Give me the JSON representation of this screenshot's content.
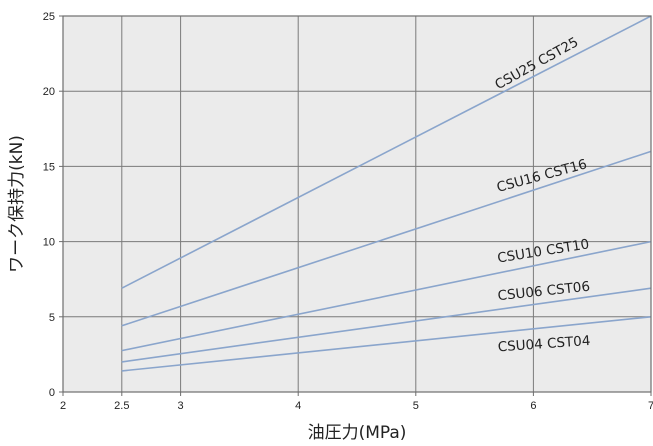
{
  "chart_data": {
    "type": "line",
    "title": "",
    "xlabel": "油圧力(MPa)",
    "ylabel": "ワーク保持力(kN)",
    "xlim": [
      2,
      7
    ],
    "ylim": [
      0,
      25
    ],
    "x_ticks": [
      2,
      2.5,
      3,
      4,
      5,
      6,
      7
    ],
    "x_tick_labels": [
      "2",
      "2.5",
      "3",
      "4",
      "5",
      "6",
      "7"
    ],
    "y_ticks": [
      0,
      5,
      10,
      15,
      20,
      25
    ],
    "y_tick_labels": [
      "0",
      "5",
      "10",
      "15",
      "20",
      "25"
    ],
    "grid": true,
    "background": "#ebebeb",
    "line_color": "#8aa5cc",
    "series": [
      {
        "name": "CSU25 CST25",
        "x": [
          2.5,
          7
        ],
        "y": [
          6.9,
          25.0
        ]
      },
      {
        "name": "CSU16 CST16",
        "x": [
          2.5,
          7
        ],
        "y": [
          4.4,
          16.0
        ]
      },
      {
        "name": "CSU10 CST10",
        "x": [
          2.5,
          7
        ],
        "y": [
          2.75,
          10.0
        ]
      },
      {
        "name": "CSU06 CST06",
        "x": [
          2.5,
          7
        ],
        "y": [
          2.0,
          6.9
        ]
      },
      {
        "name": "CSU04 CST04",
        "x": [
          2.5,
          7
        ],
        "y": [
          1.4,
          5.0
        ]
      }
    ],
    "label_positions": [
      {
        "series": "CSU25 CST25",
        "x": 5.7,
        "y": 20.1,
        "angle": -29
      },
      {
        "series": "CSU16 CST16",
        "x": 5.7,
        "y": 13.3,
        "angle": -15
      },
      {
        "series": "CSU10 CST10",
        "x": 5.7,
        "y": 8.6,
        "angle": -9
      },
      {
        "series": "CSU06 CST06",
        "x": 5.7,
        "y": 6.1,
        "angle": -6
      },
      {
        "series": "CSU04 CST04",
        "x": 5.7,
        "y": 2.7,
        "angle": -4
      }
    ]
  }
}
